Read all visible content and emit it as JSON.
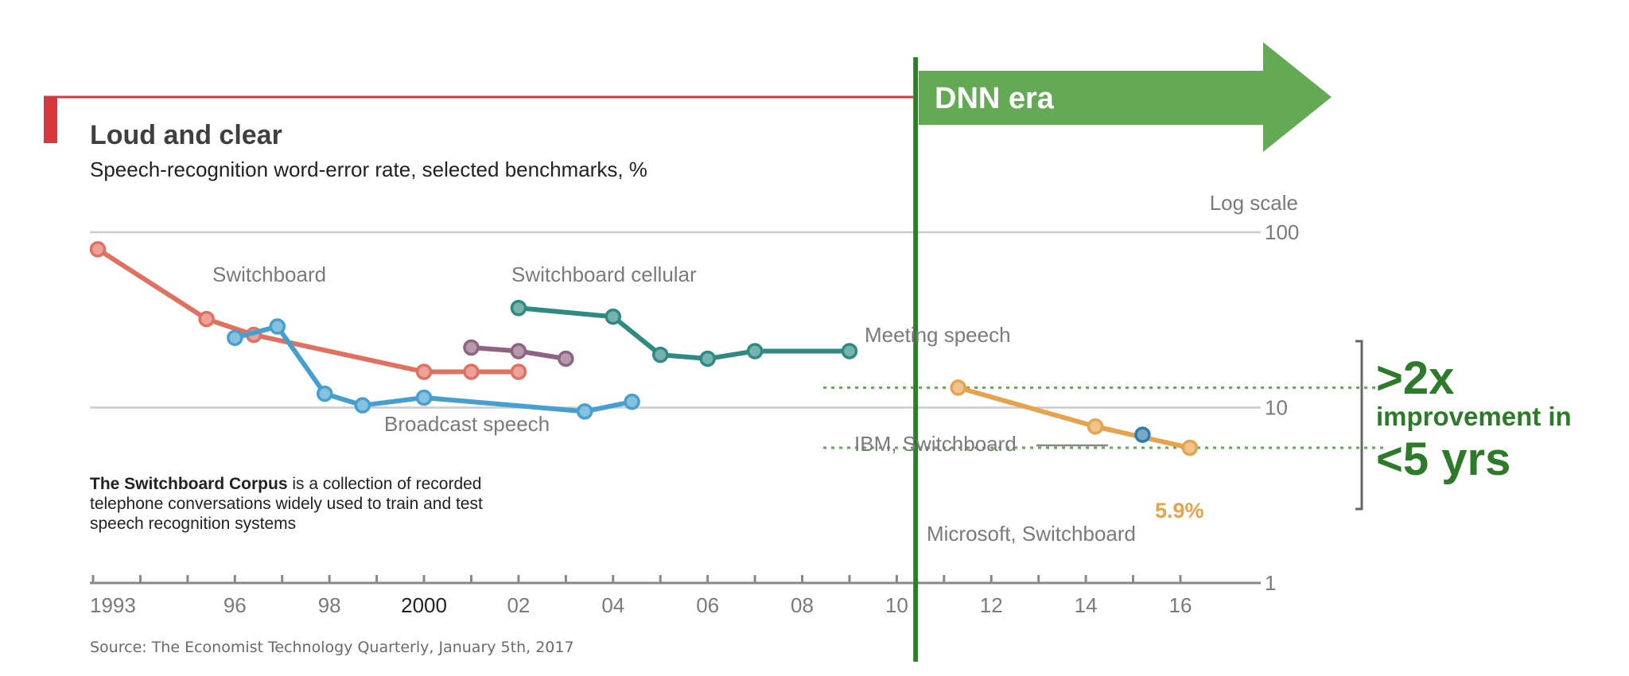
{
  "chart_data": {
    "type": "line",
    "title": "Loud and clear",
    "subtitle": "Speech-recognition word-error rate, selected benchmarks, %",
    "scale_note": "Log scale",
    "y_scale": "log",
    "ylim": [
      1,
      100
    ],
    "xlim": [
      1992.8,
      2018.5
    ],
    "y_ticks": [
      {
        "value": 100,
        "label": "100"
      },
      {
        "value": 10,
        "label": "10"
      },
      {
        "value": 1,
        "label": "1"
      }
    ],
    "x_ticks": [
      1993,
      1994,
      1995,
      1996,
      1997,
      1998,
      1999,
      2000,
      2001,
      2002,
      2003,
      2004,
      2005,
      2006,
      2007,
      2008,
      2009,
      2010,
      2011,
      2012,
      2013,
      2014,
      2015,
      2016
    ],
    "x_tick_labels": [
      {
        "value": 1993,
        "label": "1993",
        "strong": false
      },
      {
        "value": 1996,
        "label": "96",
        "strong": false
      },
      {
        "value": 1998,
        "label": "98",
        "strong": false
      },
      {
        "value": 2000,
        "label": "2000",
        "strong": true
      },
      {
        "value": 2002,
        "label": "02",
        "strong": false
      },
      {
        "value": 2004,
        "label": "04",
        "strong": false
      },
      {
        "value": 2006,
        "label": "06",
        "strong": false
      },
      {
        "value": 2008,
        "label": "08",
        "strong": false
      },
      {
        "value": 2010,
        "label": "10",
        "strong": false
      },
      {
        "value": 2012,
        "label": "12",
        "strong": false
      },
      {
        "value": 2014,
        "label": "14",
        "strong": false
      },
      {
        "value": 2016,
        "label": "16",
        "strong": false
      }
    ],
    "grid": true,
    "series": [
      {
        "name": "Switchboard",
        "color": "#e07060",
        "x": [
          1993.1,
          1995.4,
          1996.4,
          2000.0,
          2001.0,
          2002.0
        ],
        "y": [
          80.0,
          32.0,
          26.0,
          16.0,
          16.0,
          16.0
        ]
      },
      {
        "name": "Broadcast speech",
        "color": "#45a0d0",
        "x": [
          1996.0,
          1996.9,
          1997.9,
          1998.7,
          2000.0,
          2003.4,
          2004.4
        ],
        "y": [
          25.0,
          29.0,
          12.0,
          10.3,
          11.4,
          9.5,
          10.8
        ]
      },
      {
        "name": "",
        "color": "#8e6480",
        "x": [
          2001.0,
          2002.0,
          2003.0
        ],
        "y": [
          22.0,
          21.0,
          19.0
        ]
      },
      {
        "name": "Switchboard cellular",
        "color": "#2e8a82",
        "x": [
          2002.0,
          2004.0,
          2005.0,
          2006.0,
          2007.0,
          2009.0
        ],
        "y": [
          37.0,
          33.0,
          20.0,
          19.0,
          21.0,
          21.0
        ]
      },
      {
        "name": "Microsoft, Switchboard",
        "color": "#e6a34e",
        "x": [
          2011.3,
          2014.2,
          2016.2
        ],
        "y": [
          13.0,
          7.8,
          5.9
        ]
      },
      {
        "name": "IBM, Switchboard",
        "color": "#2f7aa8",
        "x": [
          2015.2
        ],
        "y": [
          7.0
        ]
      }
    ],
    "series_labels": {
      "switchboard": "Switchboard",
      "switchboard_cellular": "Switchboard cellular",
      "meeting": "Meeting speech",
      "broadcast": "Broadcast speech",
      "ibm": "IBM, Switchboard",
      "microsoft": "Microsoft, Switchboard"
    },
    "annotations": {
      "final_value": "5.9%",
      "dnn_era": "DNN era",
      "dnn_start_year": 2010.4,
      "improvement_big": ">2x",
      "improvement_mid": "improvement in",
      "improvement_years": "<5 yrs",
      "ref_high": 13.0,
      "ref_low": 5.9
    },
    "note": {
      "bold": "The Switchboard Corpus",
      "line1_rest": " is a collection of recorded",
      "line2": "telephone conversations widely used to train and test",
      "line3": "speech recognition systems"
    },
    "source": "Source: The Economist Technology Quarterly, January 5th, 2017"
  },
  "colors": {
    "accent_red": "#d9383a",
    "dnn_green": "#64a954",
    "dnn_line": "#2e7d2c",
    "gridline": "#cccccc",
    "axis": "#888888"
  }
}
